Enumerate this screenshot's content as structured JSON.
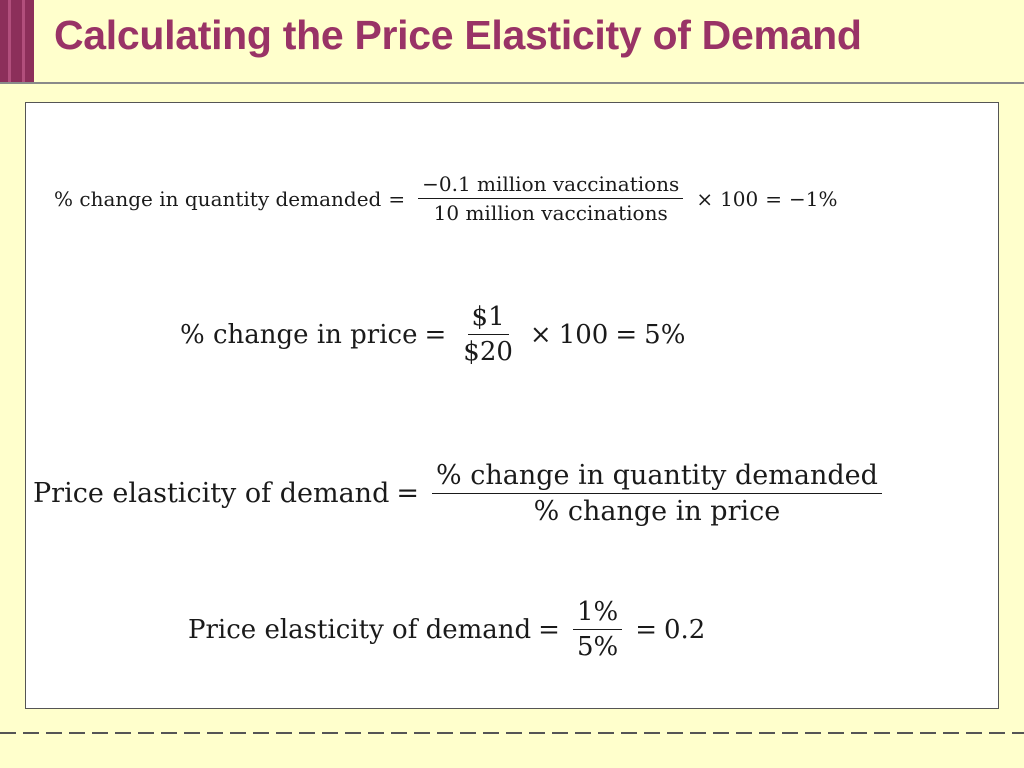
{
  "title": "Calculating the Price Elasticity of Demand",
  "colors": {
    "background": "#ffffcc",
    "title": "#993366",
    "accent_bar": "#8c2f5a",
    "content_box": "#ffffff"
  },
  "equations": {
    "eq1": {
      "lhs": "% change in quantity demanded",
      "equals": "=",
      "numerator": "−0.1 million vaccinations",
      "denominator": "10 million vaccinations",
      "times": "×",
      "multiplier": "100",
      "equals2": "=",
      "result": "−1%"
    },
    "eq2": {
      "lhs": "% change in price",
      "equals": "=",
      "numerator": "$1",
      "denominator": "$20",
      "times": "×",
      "multiplier": "100",
      "equals2": "=",
      "result": "5%"
    },
    "eq3": {
      "lhs": "Price elasticity of demand",
      "equals": "=",
      "numerator": "% change in quantity demanded",
      "denominator": "% change in price"
    },
    "eq4": {
      "lhs": "Price elasticity of demand",
      "equals": "=",
      "numerator": "1%",
      "denominator": "5%",
      "equals2": "=",
      "result": "0.2"
    }
  }
}
